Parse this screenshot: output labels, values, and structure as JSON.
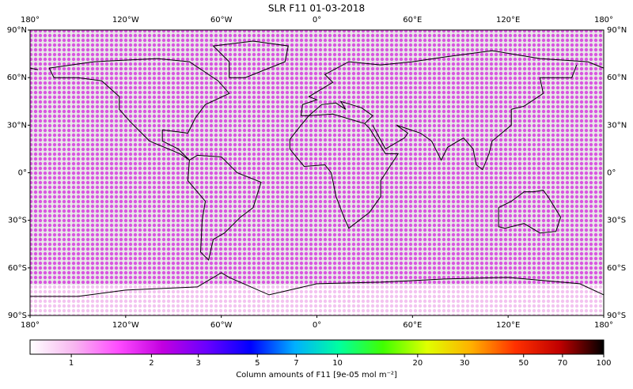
{
  "chart_data": {
    "type": "map",
    "title": "SLR F11 01-03-2018",
    "xlim": [
      -180,
      180
    ],
    "ylim": [
      -90,
      90
    ],
    "xticks": [
      {
        "value": -180,
        "label": "180°"
      },
      {
        "value": -120,
        "label": "120°W"
      },
      {
        "value": -60,
        "label": "60°W"
      },
      {
        "value": 0,
        "label": "0°"
      },
      {
        "value": 60,
        "label": "60°E"
      },
      {
        "value": 120,
        "label": "120°E"
      },
      {
        "value": 180,
        "label": "180°"
      }
    ],
    "yticks": [
      {
        "value": 90,
        "label": "90°N"
      },
      {
        "value": 60,
        "label": "60°N"
      },
      {
        "value": 30,
        "label": "30°N"
      },
      {
        "value": 0,
        "label": "0°"
      },
      {
        "value": -30,
        "label": "30°S"
      },
      {
        "value": -60,
        "label": "60°S"
      },
      {
        "value": -90,
        "label": "90°S"
      }
    ],
    "colorbar": {
      "label": "Column amounts of F11 [9e-05 mol m⁻²]",
      "log_scale": true,
      "lim": [
        0.7,
        100
      ],
      "ticks": [
        1,
        2,
        3,
        5,
        7,
        10,
        20,
        30,
        50,
        70,
        100
      ],
      "colormap": [
        "#ffffff",
        "#f7b6f0",
        "#ff4cff",
        "#c200e0",
        "#6a00ff",
        "#0000ff",
        "#00b0ff",
        "#00ffa0",
        "#40ff00",
        "#e0ff00",
        "#ffb000",
        "#ff3000",
        "#c00000",
        "#000000"
      ]
    }
  }
}
